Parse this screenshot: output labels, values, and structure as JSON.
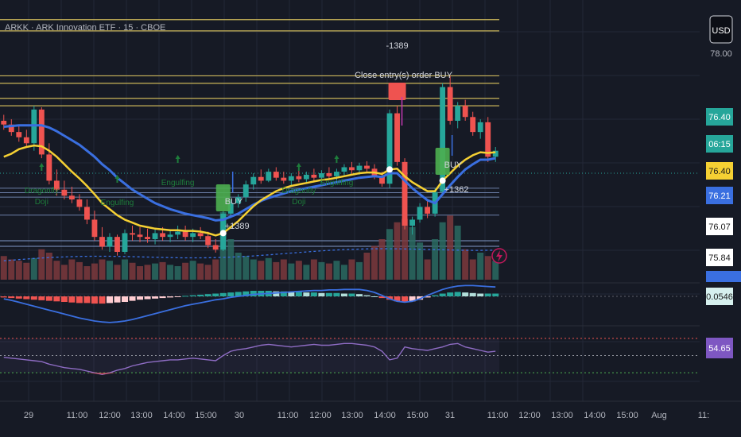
{
  "header": {
    "symbol_title": "ARKK · ARK Innovation ETF · 15 · CBOE"
  },
  "currency_button": "USD",
  "colors": {
    "bg": "#161a25",
    "grid": "#232836",
    "up": "#26a69a",
    "down": "#ef5350",
    "ema_fast": "#f5d033",
    "ema_slow": "#3a6fe0",
    "level": "#c9b458",
    "hband": "#6b7fa8",
    "pattern": "#1e7d3b",
    "rsi": "#8e6cc4"
  },
  "price_axis": {
    "ticks": [
      {
        "value": 78.0,
        "label": "78.00"
      }
    ],
    "badges": [
      {
        "value": 76.4,
        "label": "76.40",
        "bg": "#26a69a",
        "fg": "#ffffff"
      },
      {
        "value": 76.31,
        "label": "06:15",
        "bg": "#26a69a",
        "fg": "#ffffff"
      },
      {
        "value": 76.25,
        "label": "76.40",
        "bg": "#f5d033",
        "fg": "#1a1a1a"
      },
      {
        "value": 76.1,
        "label": "76.21",
        "bg": "#3a6fe0",
        "fg": "#ffffff"
      },
      {
        "value": 75.97,
        "label": "76.07",
        "bg": "#ffffff",
        "fg": "#1a1a1a"
      },
      {
        "value": 75.84,
        "label": "75.84",
        "bg": "#ffffff",
        "fg": "#1a1a1a"
      }
    ],
    "macd_badge": "0.0546",
    "rsi_badge": "54.65"
  },
  "time_axis": [
    "29",
    "11:00",
    "12:00",
    "13:00",
    "14:00",
    "15:00",
    "30",
    "11:00",
    "12:00",
    "13:00",
    "14:00",
    "15:00",
    "31",
    "11:00",
    "12:00",
    "13:00",
    "14:00",
    "15:00",
    "Aug",
    "11:"
  ],
  "chart_data": {
    "type": "candlestick",
    "symbol": "ARKK",
    "timeframe": "15",
    "exchange": "CBOE",
    "ylim": [
      75.0,
      78.5
    ],
    "levels": [
      78.45,
      78.3,
      77.7,
      77.6,
      77.4,
      77.3
    ],
    "bands": [
      76.2,
      76.14,
      76.08,
      75.84
    ],
    "candles": [
      {
        "o": 77.1,
        "h": 77.18,
        "l": 76.98,
        "c": 77.05
      },
      {
        "o": 77.05,
        "h": 77.12,
        "l": 76.9,
        "c": 76.95
      },
      {
        "o": 76.95,
        "h": 77.05,
        "l": 76.82,
        "c": 76.88
      },
      {
        "o": 76.88,
        "h": 76.98,
        "l": 76.75,
        "c": 76.8
      },
      {
        "o": 76.8,
        "h": 77.3,
        "l": 76.7,
        "c": 77.25
      },
      {
        "o": 77.25,
        "h": 77.28,
        "l": 76.6,
        "c": 76.65
      },
      {
        "o": 76.65,
        "h": 76.8,
        "l": 76.25,
        "c": 76.3
      },
      {
        "o": 76.3,
        "h": 76.45,
        "l": 76.1,
        "c": 76.18
      },
      {
        "o": 76.18,
        "h": 76.3,
        "l": 76.05,
        "c": 76.1
      },
      {
        "o": 76.1,
        "h": 76.22,
        "l": 76.0,
        "c": 76.05
      },
      {
        "o": 76.05,
        "h": 76.12,
        "l": 75.9,
        "c": 75.95
      },
      {
        "o": 75.95,
        "h": 76.05,
        "l": 75.72,
        "c": 75.78
      },
      {
        "o": 75.78,
        "h": 75.9,
        "l": 75.5,
        "c": 75.55
      },
      {
        "o": 75.55,
        "h": 75.68,
        "l": 75.38,
        "c": 75.42
      },
      {
        "o": 75.42,
        "h": 75.6,
        "l": 75.35,
        "c": 75.55
      },
      {
        "o": 75.55,
        "h": 75.58,
        "l": 75.3,
        "c": 75.35
      },
      {
        "o": 75.35,
        "h": 75.65,
        "l": 75.32,
        "c": 75.6
      },
      {
        "o": 75.6,
        "h": 75.7,
        "l": 75.5,
        "c": 75.58
      },
      {
        "o": 75.58,
        "h": 75.68,
        "l": 75.48,
        "c": 75.55
      },
      {
        "o": 75.55,
        "h": 75.66,
        "l": 75.47,
        "c": 75.52
      },
      {
        "o": 75.52,
        "h": 75.65,
        "l": 75.45,
        "c": 75.6
      },
      {
        "o": 75.6,
        "h": 75.68,
        "l": 75.5,
        "c": 75.55
      },
      {
        "o": 75.55,
        "h": 75.64,
        "l": 75.48,
        "c": 75.58
      },
      {
        "o": 75.58,
        "h": 75.7,
        "l": 75.52,
        "c": 75.62
      },
      {
        "o": 75.62,
        "h": 75.7,
        "l": 75.5,
        "c": 75.55
      },
      {
        "o": 75.55,
        "h": 75.66,
        "l": 75.48,
        "c": 75.6
      },
      {
        "o": 75.6,
        "h": 75.68,
        "l": 75.52,
        "c": 75.56
      },
      {
        "o": 75.56,
        "h": 75.62,
        "l": 75.4,
        "c": 75.44
      },
      {
        "o": 75.44,
        "h": 75.52,
        "l": 75.34,
        "c": 75.38
      },
      {
        "o": 75.38,
        "h": 75.9,
        "l": 75.36,
        "c": 75.86
      },
      {
        "o": 75.86,
        "h": 76.05,
        "l": 75.8,
        "c": 76.0
      },
      {
        "o": 76.0,
        "h": 76.12,
        "l": 75.94,
        "c": 76.08
      },
      {
        "o": 76.08,
        "h": 76.3,
        "l": 76.02,
        "c": 76.25
      },
      {
        "o": 76.25,
        "h": 76.4,
        "l": 76.18,
        "c": 76.35
      },
      {
        "o": 76.35,
        "h": 76.45,
        "l": 76.26,
        "c": 76.3
      },
      {
        "o": 76.3,
        "h": 76.46,
        "l": 76.28,
        "c": 76.42
      },
      {
        "o": 76.42,
        "h": 76.48,
        "l": 76.3,
        "c": 76.34
      },
      {
        "o": 76.34,
        "h": 76.42,
        "l": 76.26,
        "c": 76.3
      },
      {
        "o": 76.3,
        "h": 76.4,
        "l": 76.24,
        "c": 76.36
      },
      {
        "o": 76.36,
        "h": 76.44,
        "l": 76.28,
        "c": 76.32
      },
      {
        "o": 76.32,
        "h": 76.42,
        "l": 76.26,
        "c": 76.38
      },
      {
        "o": 76.38,
        "h": 76.46,
        "l": 76.3,
        "c": 76.34
      },
      {
        "o": 76.34,
        "h": 76.44,
        "l": 76.28,
        "c": 76.4
      },
      {
        "o": 76.4,
        "h": 76.48,
        "l": 76.32,
        "c": 76.36
      },
      {
        "o": 76.36,
        "h": 76.46,
        "l": 76.3,
        "c": 76.42
      },
      {
        "o": 76.42,
        "h": 76.52,
        "l": 76.36,
        "c": 76.48
      },
      {
        "o": 76.48,
        "h": 76.55,
        "l": 76.38,
        "c": 76.44
      },
      {
        "o": 76.44,
        "h": 76.54,
        "l": 76.38,
        "c": 76.5
      },
      {
        "o": 76.5,
        "h": 76.56,
        "l": 76.4,
        "c": 76.46
      },
      {
        "o": 76.46,
        "h": 76.52,
        "l": 76.32,
        "c": 76.36
      },
      {
        "o": 76.36,
        "h": 76.42,
        "l": 76.22,
        "c": 76.26
      },
      {
        "o": 76.26,
        "h": 77.25,
        "l": 76.2,
        "c": 77.2
      },
      {
        "o": 77.2,
        "h": 77.3,
        "l": 76.5,
        "c": 76.55
      },
      {
        "o": 76.55,
        "h": 76.6,
        "l": 75.65,
        "c": 75.7
      },
      {
        "o": 75.7,
        "h": 75.82,
        "l": 75.58,
        "c": 75.78
      },
      {
        "o": 75.78,
        "h": 76.0,
        "l": 75.74,
        "c": 75.95
      },
      {
        "o": 75.95,
        "h": 76.05,
        "l": 75.8,
        "c": 75.86
      },
      {
        "o": 75.86,
        "h": 76.2,
        "l": 75.82,
        "c": 76.15
      },
      {
        "o": 76.15,
        "h": 77.6,
        "l": 76.1,
        "c": 77.55
      },
      {
        "o": 77.55,
        "h": 77.7,
        "l": 77.05,
        "c": 77.1
      },
      {
        "o": 77.1,
        "h": 77.35,
        "l": 77.0,
        "c": 77.3
      },
      {
        "o": 77.3,
        "h": 77.38,
        "l": 77.1,
        "c": 77.15
      },
      {
        "o": 77.15,
        "h": 77.22,
        "l": 76.9,
        "c": 76.95
      },
      {
        "o": 76.95,
        "h": 77.12,
        "l": 76.86,
        "c": 77.08
      },
      {
        "o": 77.08,
        "h": 77.15,
        "l": 76.55,
        "c": 76.62
      },
      {
        "o": 76.62,
        "h": 76.75,
        "l": 76.55,
        "c": 76.7
      }
    ],
    "ema_fast": [
      76.62,
      76.66,
      76.72,
      76.75,
      76.77,
      76.76,
      76.7,
      76.62,
      76.52,
      76.42,
      76.33,
      76.23,
      76.12,
      76.0,
      75.92,
      75.84,
      75.78,
      75.74,
      75.7,
      75.68,
      75.66,
      75.65,
      75.64,
      75.64,
      75.63,
      75.63,
      75.62,
      75.6,
      75.57,
      75.6,
      75.68,
      75.76,
      75.86,
      75.96,
      76.04,
      76.1,
      76.16,
      76.2,
      76.23,
      76.25,
      76.27,
      76.29,
      76.31,
      76.32,
      76.34,
      76.36,
      76.38,
      76.4,
      76.41,
      76.41,
      76.39,
      76.45,
      76.46,
      76.36,
      76.28,
      76.22,
      76.16,
      76.16,
      76.3,
      76.4,
      76.5,
      76.58,
      76.64,
      76.68,
      76.67,
      76.68
    ],
    "ema_slow": [
      77.02,
      77.03,
      77.04,
      77.04,
      77.04,
      77.04,
      77.01,
      76.96,
      76.9,
      76.84,
      76.78,
      76.7,
      76.62,
      76.52,
      76.44,
      76.34,
      76.26,
      76.18,
      76.12,
      76.06,
      76.0,
      75.96,
      75.92,
      75.89,
      75.86,
      75.84,
      75.82,
      75.8,
      75.77,
      75.78,
      75.82,
      75.86,
      75.92,
      75.98,
      76.03,
      76.07,
      76.1,
      76.13,
      76.16,
      76.18,
      76.2,
      76.22,
      76.24,
      76.26,
      76.28,
      76.3,
      76.32,
      76.34,
      76.35,
      76.36,
      76.35,
      76.4,
      76.4,
      76.3,
      76.2,
      76.12,
      76.04,
      76.0,
      76.12,
      76.24,
      76.35,
      76.45,
      76.52,
      76.58,
      76.58,
      76.6
    ],
    "volume": [
      0.35,
      0.3,
      0.28,
      0.25,
      0.32,
      0.45,
      0.4,
      0.28,
      0.22,
      0.3,
      0.26,
      0.2,
      0.24,
      0.3,
      0.28,
      0.22,
      0.3,
      0.25,
      0.2,
      0.22,
      0.24,
      0.26,
      0.22,
      0.2,
      0.25,
      0.28,
      0.24,
      0.22,
      0.3,
      1.0,
      0.6,
      0.4,
      0.35,
      0.3,
      0.28,
      0.32,
      0.26,
      0.3,
      0.24,
      0.28,
      0.22,
      0.3,
      0.26,
      0.24,
      0.28,
      0.22,
      0.3,
      0.26,
      0.4,
      0.5,
      0.6,
      0.75,
      0.85,
      0.9,
      0.78,
      0.55,
      0.3,
      0.6,
      0.85,
      0.95,
      0.8,
      0.45,
      0.3,
      0.4,
      0.35,
      0.28
    ],
    "signals": [
      {
        "i": 29,
        "type": "long",
        "label": "BUY",
        "qty": "+1389"
      },
      {
        "i": 52,
        "type": "close",
        "label": "Close entry(s) order BUY",
        "qty": "-1389"
      },
      {
        "i": 58,
        "type": "long",
        "label": "BUY",
        "qty": "+1362"
      }
    ],
    "patterns": [
      {
        "i": 5,
        "label": "Dragonfly Doji"
      },
      {
        "i": 15,
        "label": "Engulfing"
      },
      {
        "i": 23,
        "label": "Engulfing"
      },
      {
        "i": 39,
        "label": "Dragonfly Doji"
      },
      {
        "i": 44,
        "label": "Engulfing"
      }
    ],
    "macd_hist": [
      -0.02,
      -0.03,
      -0.04,
      -0.05,
      -0.06,
      -0.07,
      -0.08,
      -0.09,
      -0.1,
      -0.11,
      -0.12,
      -0.12,
      -0.13,
      -0.13,
      -0.12,
      -0.11,
      -0.1,
      -0.08,
      -0.06,
      -0.05,
      -0.04,
      -0.03,
      -0.02,
      -0.01,
      0.01,
      0.02,
      0.03,
      0.04,
      0.05,
      0.06,
      0.07,
      0.08,
      0.09,
      0.1,
      0.1,
      0.1,
      0.09,
      0.09,
      0.08,
      0.08,
      0.07,
      0.07,
      0.06,
      0.06,
      0.06,
      0.05,
      0.05,
      0.04,
      0.02,
      0.0,
      -0.03,
      -0.06,
      -0.09,
      -0.1,
      -0.09,
      -0.06,
      -0.02,
      0.02,
      0.05,
      0.07,
      0.08,
      0.07,
      0.06,
      0.05,
      0.05,
      0.05
    ],
    "macd_line": [
      -0.05,
      -0.08,
      -0.12,
      -0.16,
      -0.2,
      -0.24,
      -0.28,
      -0.32,
      -0.36,
      -0.4,
      -0.44,
      -0.47,
      -0.5,
      -0.52,
      -0.53,
      -0.52,
      -0.5,
      -0.47,
      -0.43,
      -0.39,
      -0.35,
      -0.31,
      -0.27,
      -0.23,
      -0.19,
      -0.16,
      -0.13,
      -0.1,
      -0.07,
      -0.05,
      -0.02,
      0.0,
      0.02,
      0.04,
      0.05,
      0.06,
      0.07,
      0.08,
      0.09,
      0.1,
      0.11,
      0.12,
      0.12,
      0.13,
      0.13,
      0.14,
      0.14,
      0.14,
      0.12,
      0.08,
      0.02,
      -0.05,
      -0.1,
      -0.12,
      -0.1,
      -0.05,
      0.02,
      0.08,
      0.14,
      0.18,
      0.21,
      0.22,
      0.22,
      0.21,
      0.2,
      0.19
    ],
    "rsi": [
      48,
      47,
      46,
      45,
      44,
      43,
      40,
      38,
      36,
      35,
      34,
      32,
      30,
      28,
      30,
      33,
      35,
      38,
      40,
      42,
      43,
      44,
      45,
      45,
      46,
      47,
      46,
      45,
      44,
      50,
      55,
      57,
      58,
      60,
      62,
      63,
      62,
      61,
      60,
      61,
      62,
      63,
      62,
      62,
      63,
      64,
      64,
      63,
      62,
      60,
      55,
      45,
      47,
      60,
      58,
      57,
      56,
      58,
      60,
      63,
      64,
      60,
      58,
      56,
      54,
      55
    ],
    "rsi_levels": [
      70,
      50,
      30
    ]
  }
}
